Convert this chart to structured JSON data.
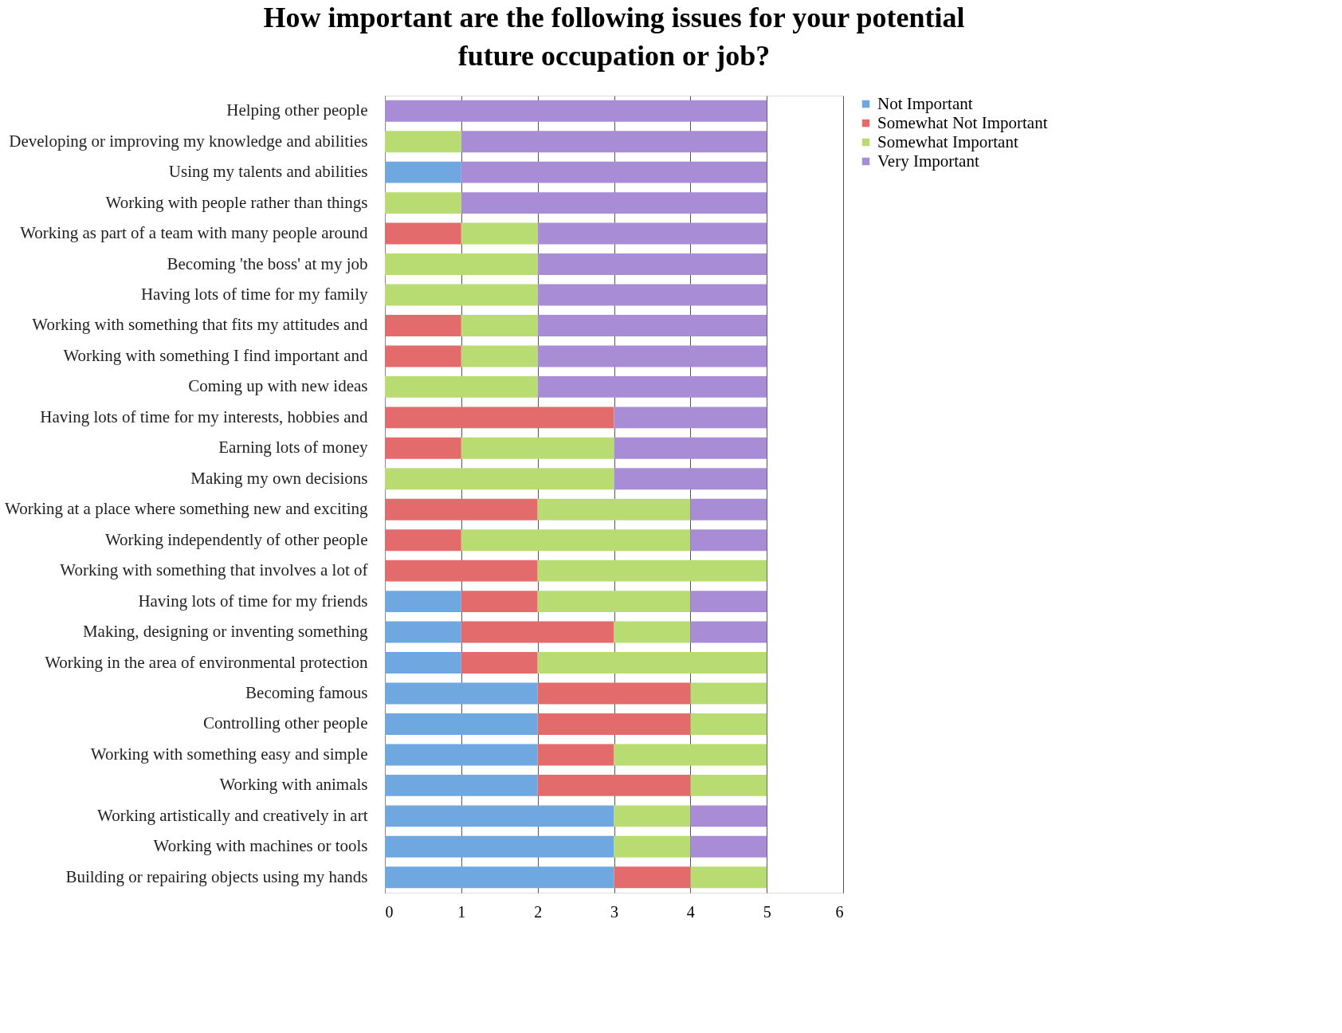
{
  "chart_data": {
    "type": "bar",
    "orientation": "horizontal",
    "stacked": true,
    "title": "How important are the following issues for your potential\nfuture occupation or job?",
    "categories": [
      "Helping other people",
      "Developing or improving my knowledge and abilities",
      "Using my talents and abilities",
      "Working with people rather than things",
      "Working as part of a team with many people around",
      "Becoming 'the boss' at my job",
      "Having lots of time for my family",
      "Working with something that fits my attitudes and",
      "Working with something I find important and",
      "Coming up with new ideas",
      "Having lots of time for my interests, hobbies and",
      "Earning lots of money",
      "Making my own decisions",
      "Working at a place where something new and exciting",
      "Working independently of other people",
      "Working with something that involves a lot of",
      "Having lots of time for my friends",
      "Making, designing or inventing something",
      "Working in the area of environmental protection",
      "Becoming famous",
      "Controlling other people",
      "Working with something easy and simple",
      "Working with animals",
      "Working artistically and creatively in art",
      "Working with machines or tools",
      "Building or repairing objects using my hands"
    ],
    "series": [
      {
        "name": "Not Important",
        "color": "#6fa8e0",
        "values": [
          0,
          0,
          1,
          0,
          0,
          0,
          0,
          0,
          0,
          0,
          0,
          0,
          0,
          0,
          0,
          0,
          1,
          1,
          1,
          2,
          2,
          2,
          2,
          3,
          3,
          3
        ]
      },
      {
        "name": "Somewhat Not Important",
        "color": "#e36b6b",
        "values": [
          0,
          0,
          0,
          0,
          1,
          0,
          0,
          1,
          1,
          0,
          3,
          1,
          0,
          2,
          1,
          2,
          1,
          2,
          1,
          2,
          2,
          1,
          2,
          0,
          0,
          1
        ]
      },
      {
        "name": "Somewhat Important",
        "color": "#b8dc72",
        "values": [
          0,
          1,
          0,
          1,
          1,
          2,
          2,
          1,
          1,
          2,
          0,
          2,
          3,
          2,
          3,
          3,
          2,
          1,
          3,
          1,
          1,
          2,
          1,
          1,
          1,
          1
        ]
      },
      {
        "name": "Very Important",
        "color": "#a98cd6",
        "values": [
          5,
          4,
          4,
          4,
          3,
          3,
          3,
          3,
          3,
          3,
          2,
          2,
          2,
          1,
          1,
          0,
          1,
          1,
          0,
          0,
          0,
          0,
          0,
          1,
          1,
          0
        ]
      }
    ],
    "xlim": [
      0,
      6
    ],
    "xticks": [
      0,
      1,
      2,
      3,
      4,
      5,
      6
    ],
    "grid": "x",
    "legend": "right"
  }
}
